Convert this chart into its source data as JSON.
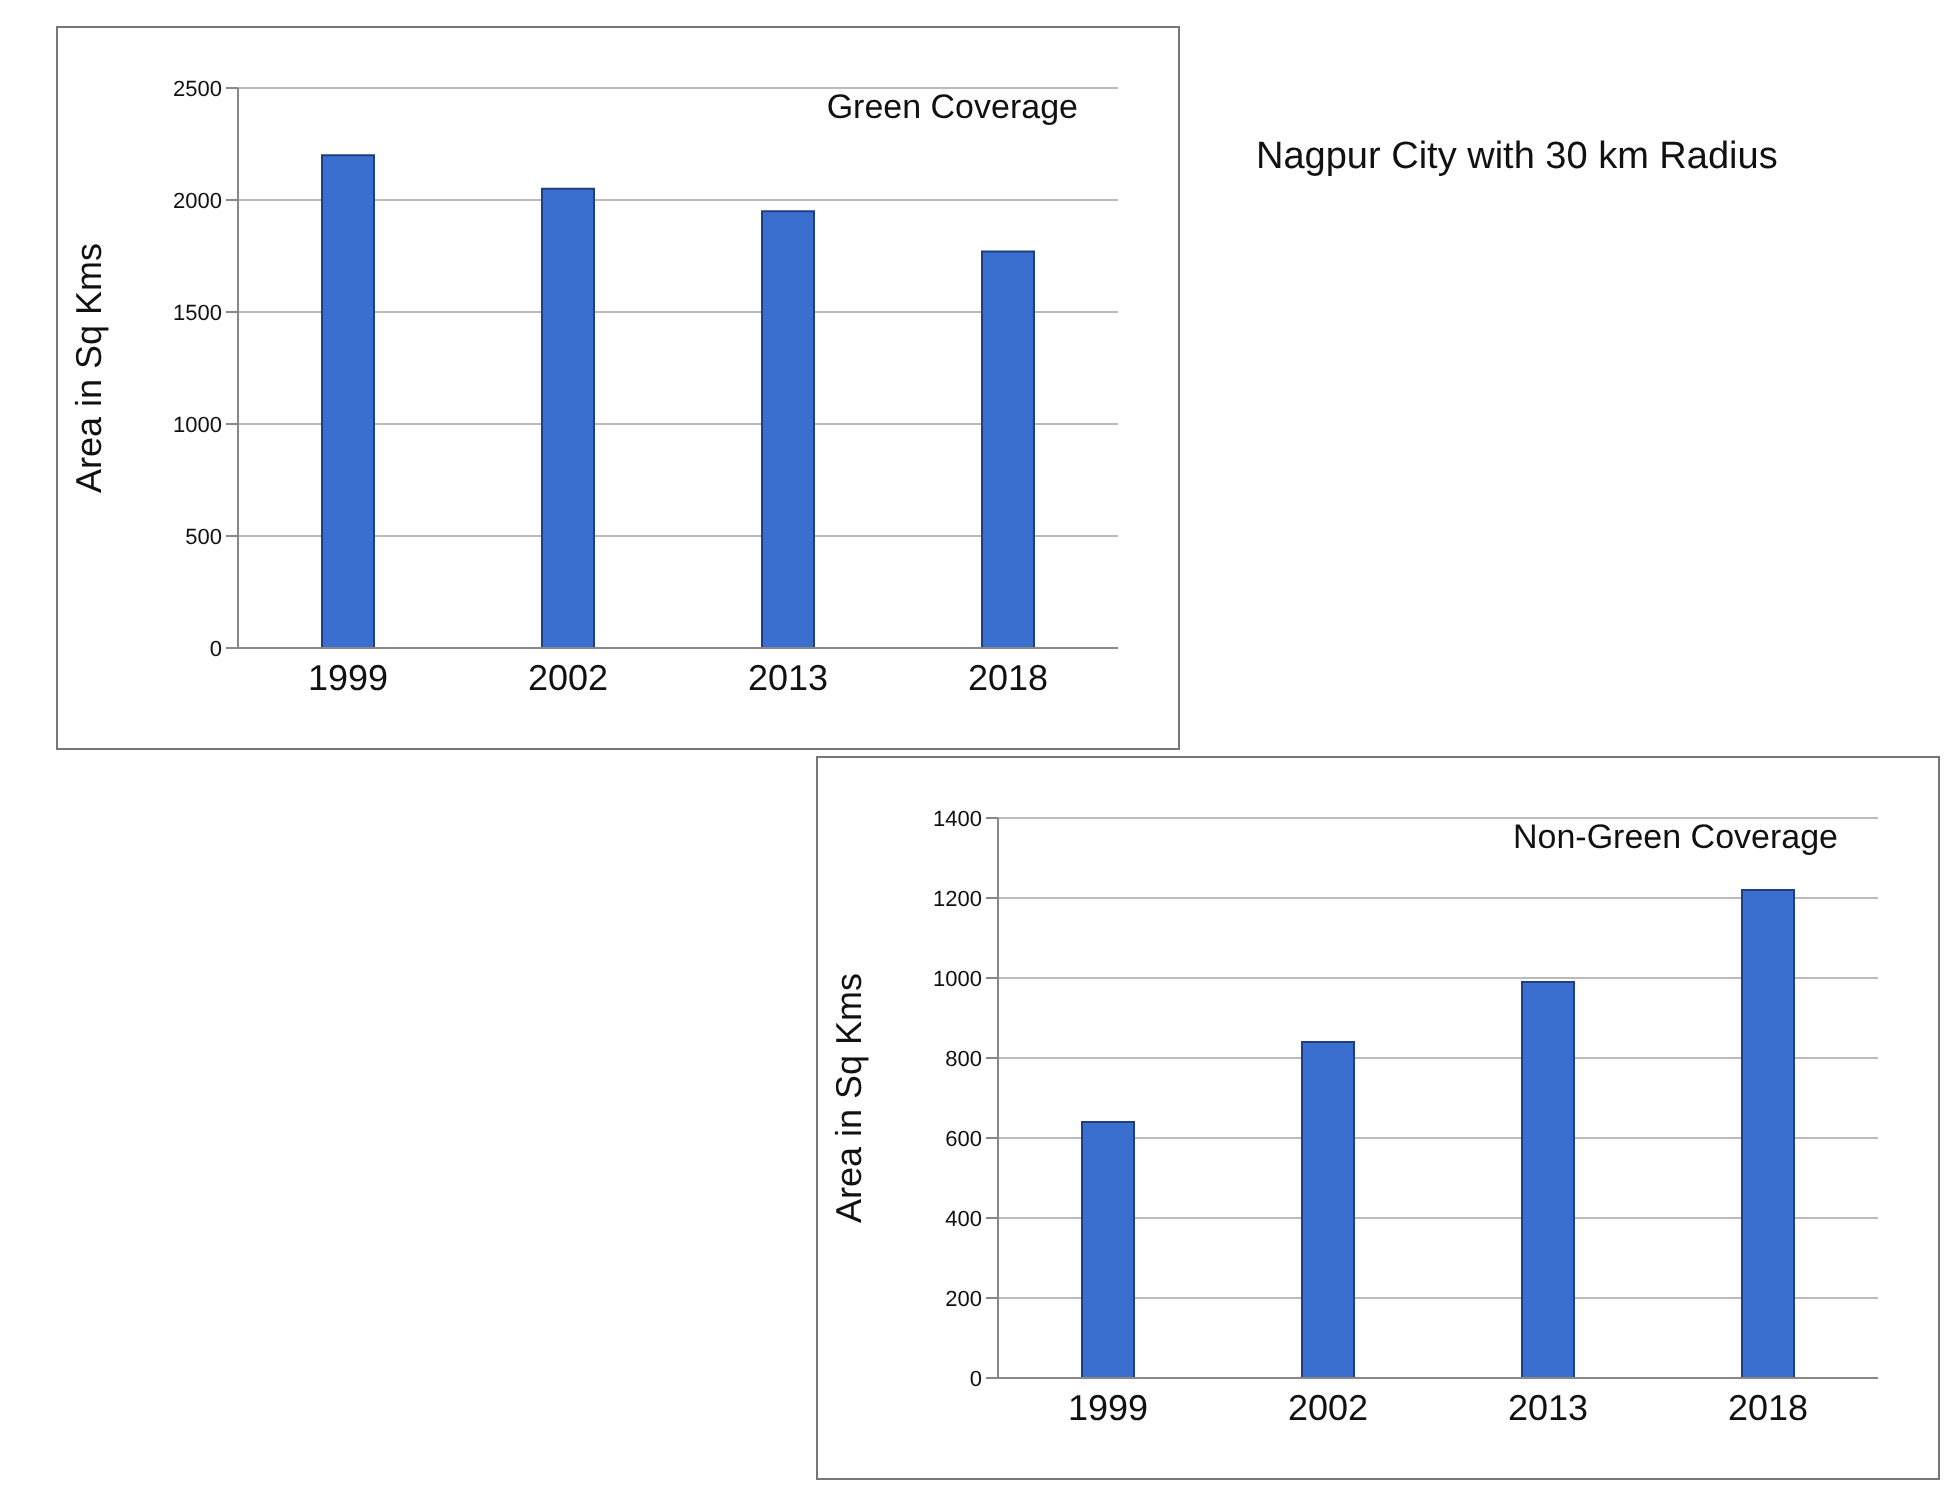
{
  "chart_data": [
    {
      "type": "bar",
      "title": "Green Coverage",
      "ylabel": "Area in Sq Kms",
      "categories": [
        "1999",
        "2002",
        "2013",
        "2018"
      ],
      "values": [
        2200,
        2050,
        1950,
        1770
      ],
      "color": "#3a6fd0",
      "ylim": [
        0,
        2500
      ],
      "yticks": [
        0,
        500,
        1000,
        1500,
        2000,
        2500
      ],
      "grid": "y",
      "annotations": [
        "Nagpur City with 30 km Radius"
      ]
    },
    {
      "type": "bar",
      "title": "Non-Green Coverage",
      "ylabel": "Area in Sq Kms",
      "categories": [
        "1999",
        "2002",
        "2013",
        "2018"
      ],
      "values": [
        640,
        840,
        990,
        1220
      ],
      "color": "#3a6fd0",
      "ylim": [
        0,
        1400
      ],
      "yticks": [
        0,
        200,
        400,
        600,
        800,
        1000,
        1200,
        1400
      ],
      "grid": "y"
    }
  ]
}
